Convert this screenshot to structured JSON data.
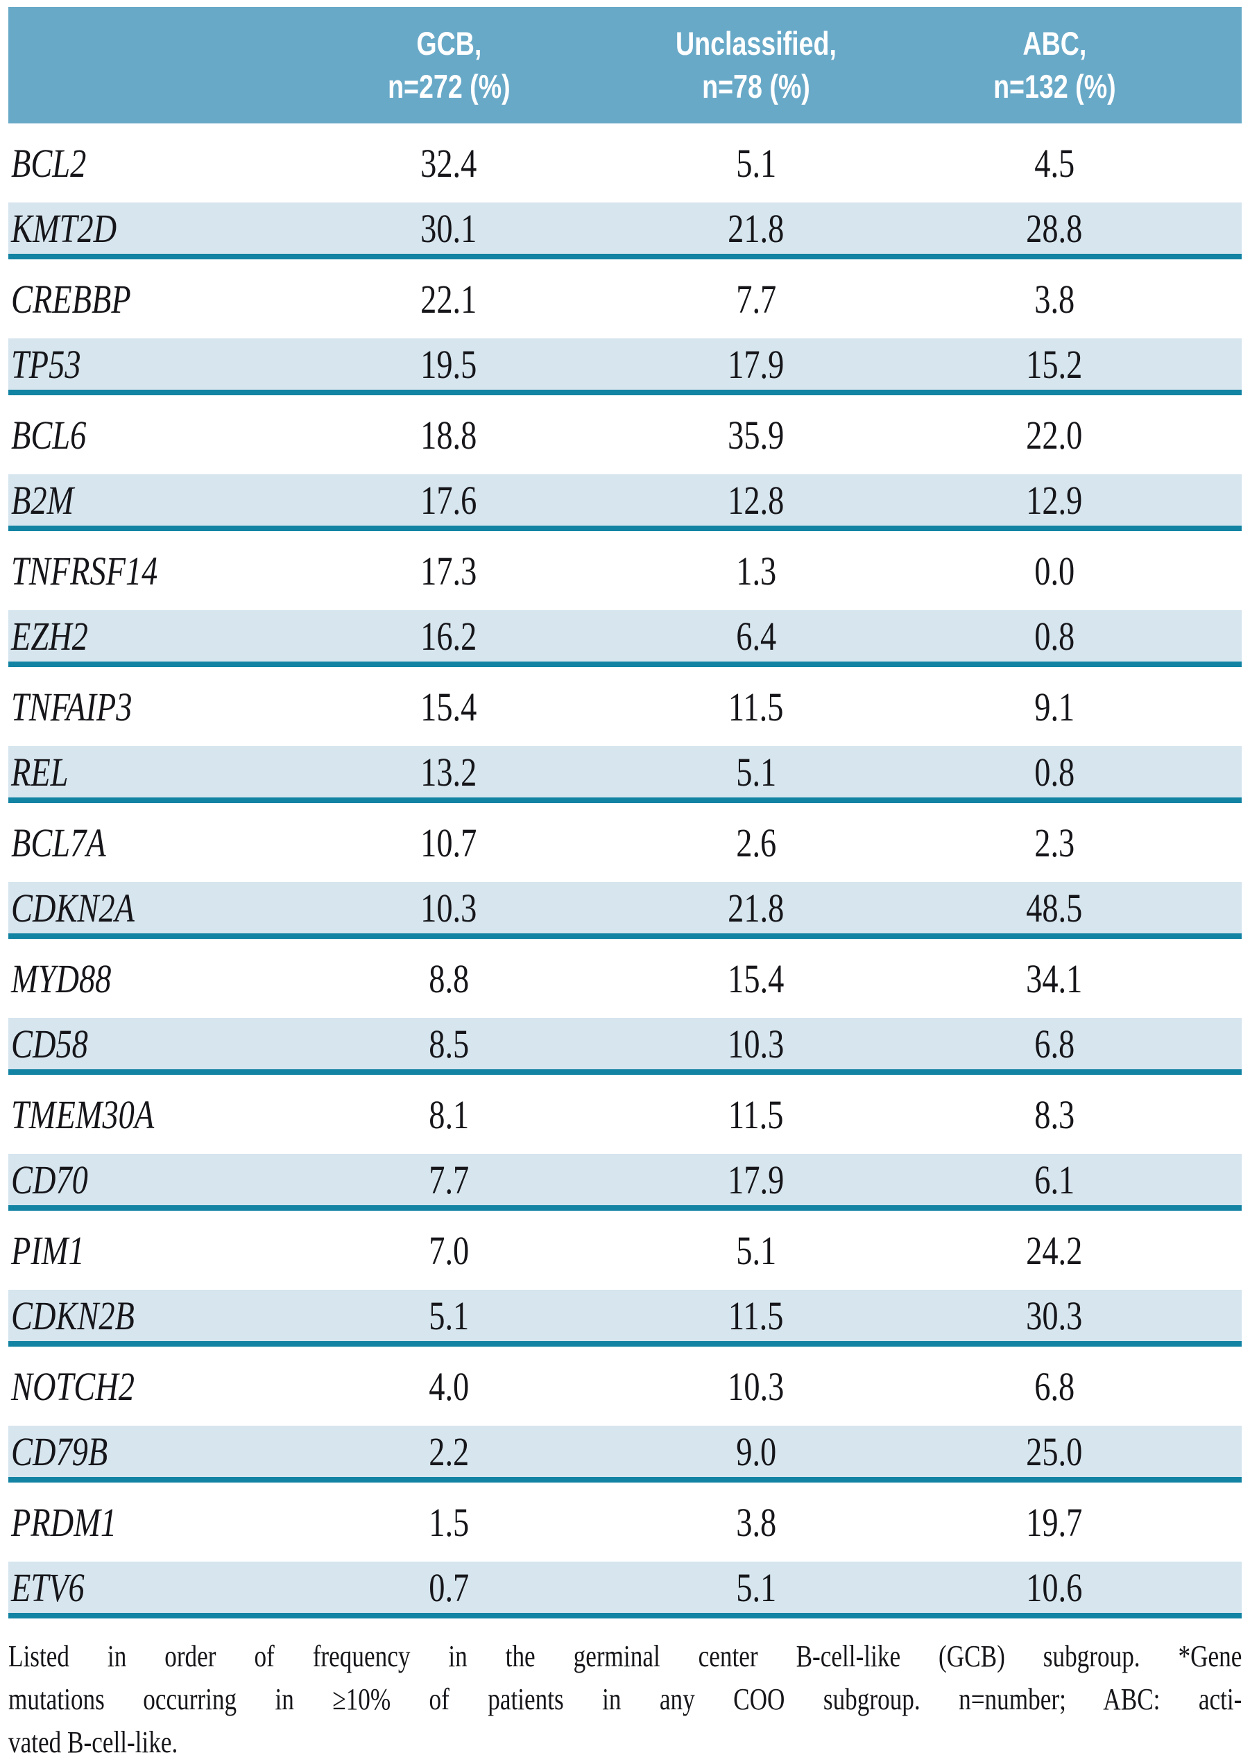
{
  "table": {
    "header": {
      "columns": [
        {
          "line1": "GCB,",
          "line2": "n=272 (%)"
        },
        {
          "line1": "Unclassified,",
          "line2": "n=78 (%)"
        },
        {
          "line1": "ABC,",
          "line2": "n=132 (%)"
        }
      ]
    },
    "rows": [
      {
        "gene": "BCL2",
        "values": [
          "32.4",
          "5.1",
          "4.5"
        ]
      },
      {
        "gene": "KMT2D",
        "values": [
          "30.1",
          "21.8",
          "28.8"
        ]
      },
      {
        "gene": "CREBBP",
        "values": [
          "22.1",
          "7.7",
          "3.8"
        ]
      },
      {
        "gene": "TP53",
        "values": [
          "19.5",
          "17.9",
          "15.2"
        ]
      },
      {
        "gene": "BCL6",
        "values": [
          "18.8",
          "35.9",
          "22.0"
        ]
      },
      {
        "gene": "B2M",
        "values": [
          "17.6",
          "12.8",
          "12.9"
        ]
      },
      {
        "gene": "TNFRSF14",
        "values": [
          "17.3",
          "1.3",
          "0.0"
        ]
      },
      {
        "gene": "EZH2",
        "values": [
          "16.2",
          "6.4",
          "0.8"
        ]
      },
      {
        "gene": "TNFAIP3",
        "values": [
          "15.4",
          "11.5",
          "9.1"
        ]
      },
      {
        "gene": "REL",
        "values": [
          "13.2",
          "5.1",
          "0.8"
        ]
      },
      {
        "gene": "BCL7A",
        "values": [
          "10.7",
          "2.6",
          "2.3"
        ]
      },
      {
        "gene": "CDKN2A",
        "values": [
          "10.3",
          "21.8",
          "48.5"
        ]
      },
      {
        "gene": "MYD88",
        "values": [
          "8.8",
          "15.4",
          "34.1"
        ]
      },
      {
        "gene": "CD58",
        "values": [
          "8.5",
          "10.3",
          "6.8"
        ]
      },
      {
        "gene": "TMEM30A",
        "values": [
          "8.1",
          "11.5",
          "8.3"
        ]
      },
      {
        "gene": "CD70",
        "values": [
          "7.7",
          "17.9",
          "6.1"
        ]
      },
      {
        "gene": "PIM1",
        "values": [
          "7.0",
          "5.1",
          "24.2"
        ]
      },
      {
        "gene": "CDKN2B",
        "values": [
          "5.1",
          "11.5",
          "30.3"
        ]
      },
      {
        "gene": "NOTCH2",
        "values": [
          "4.0",
          "10.3",
          "6.8"
        ]
      },
      {
        "gene": "CD79B",
        "values": [
          "2.2",
          "9.0",
          "25.0"
        ]
      },
      {
        "gene": "PRDM1",
        "values": [
          "1.5",
          "3.8",
          "19.7"
        ]
      },
      {
        "gene": "ETV6",
        "values": [
          "0.7",
          "5.1",
          "10.6"
        ]
      }
    ]
  },
  "footnote": {
    "lines": [
      "Listed in order of frequency in the germinal center B-cell-like (GCB) subgroup. *Gene",
      "mutations occurring in ≥10% of patients in any COO subgroup. n=number; ABC: acti-",
      "vated B-cell-like."
    ]
  },
  "colors": {
    "header_bg": "#69a9c8",
    "row_stripe": "#d6e5ee",
    "rule": "#1383a3",
    "header_text": "#ffffff",
    "body_text": "#16161a"
  }
}
